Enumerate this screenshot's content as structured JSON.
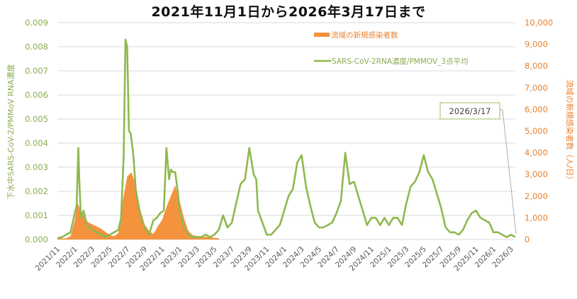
{
  "title": "2021年11月1日から2026年3月17日まで",
  "chart_data": {
    "type": "bar+line",
    "title": "2021年11月1日から2026年3月17日まで",
    "xlabel": "",
    "ylabel_left": "下水中SARS-CoV-2/PMMoV RNA濃度",
    "ylabel_right": "流域の新規感染者数（人/日）",
    "ylim_left": [
      0,
      0.009
    ],
    "ylim_right": [
      0,
      10000
    ],
    "yticks_left": [
      "0.000",
      "0.001",
      "0.002",
      "0.003",
      "0.004",
      "0.005",
      "0.006",
      "0.007",
      "0.008",
      "0.009"
    ],
    "yticks_right": [
      "0",
      "1,000",
      "2,000",
      "3,000",
      "4,000",
      "5,000",
      "6,000",
      "7,000",
      "8,000",
      "9,000",
      "10,000"
    ],
    "xticks": [
      "2021/11",
      "2022/1",
      "2022/3",
      "2022/5",
      "2022/7",
      "2022/9",
      "2022/11",
      "2023/1",
      "2023/3",
      "2023/5",
      "2023/7",
      "2023/9",
      "2023/11",
      "2024/1",
      "2024/3",
      "2024/5",
      "2024/7",
      "2024/9",
      "2024/11",
      "2025/1",
      "2025/3",
      "2025/5",
      "2025/7",
      "2025/9",
      "2025/11",
      "2026/1",
      "2026/3"
    ],
    "grid": true,
    "legend_position": "top-right inside",
    "series": [
      {
        "name": "流域の新規感染者数",
        "type": "area-bar",
        "axis": "right",
        "color": "#f5923e",
        "x_month_index": [
          0,
          1,
          1.5,
          2,
          2.3,
          2.6,
          3,
          3.5,
          4,
          4.5,
          5,
          5.5,
          6,
          6.5,
          7,
          7.5,
          8,
          8.5,
          9,
          9.5,
          10,
          10.5,
          11,
          11.5,
          12,
          12.5,
          13,
          13.5,
          14,
          14.5,
          15,
          15.5,
          16,
          16.5,
          17,
          17.5,
          18,
          18.5,
          18.6
        ],
        "values": [
          50,
          60,
          150,
          900,
          1700,
          1400,
          1100,
          800,
          700,
          600,
          500,
          350,
          200,
          150,
          300,
          1800,
          2900,
          3100,
          2500,
          1400,
          700,
          400,
          250,
          600,
          900,
          1500,
          2000,
          2500,
          1800,
          1000,
          400,
          200,
          150,
          100,
          120,
          100,
          80,
          60,
          0
        ]
      },
      {
        "name": "SARS-CoV-2RNA濃度/PMMOV_3点平均",
        "type": "line",
        "axis": "left",
        "color": "#8fb84f",
        "x_month_index": [
          0,
          0.5,
          1,
          1.5,
          2,
          2.2,
          2.4,
          2.5,
          2.7,
          3,
          3.3,
          3.6,
          4,
          4.5,
          5,
          5.5,
          6,
          6.5,
          7,
          7.3,
          7.6,
          7.8,
          8.0,
          8.2,
          8.4,
          8.7,
          9,
          9.5,
          10,
          10.5,
          11,
          11.4,
          11.8,
          12.2,
          12.5,
          12.8,
          13,
          13.2,
          13.5,
          13.8,
          14,
          14.5,
          15,
          15.5,
          16,
          16.5,
          17,
          17.5,
          18,
          18.5,
          19,
          19.5,
          20,
          20.5,
          21,
          21.5,
          22,
          22.5,
          22.8,
          23,
          23.5,
          24,
          24.5,
          25,
          25.5,
          26,
          26.5,
          27,
          27.5,
          28,
          28.5,
          29,
          29.5,
          30,
          30.5,
          31,
          31.5,
          32,
          32.5,
          33,
          33.5,
          34,
          34.5,
          35,
          35.5,
          36,
          36.5,
          37,
          37.5,
          38,
          38.5,
          39,
          39.5,
          40,
          40.5,
          41,
          41.5,
          42,
          42.5,
          43,
          43.5,
          44,
          44.5,
          45,
          45.5,
          46,
          46.5,
          47,
          47.5,
          48,
          48.5,
          49,
          49.5,
          50,
          50.5,
          51,
          51.5,
          52,
          52.5
        ],
        "values": [
          5e-05,
          0.0001,
          0.0002,
          0.0003,
          0.0011,
          0.0014,
          0.0038,
          0.0025,
          0.0009,
          0.0012,
          0.0007,
          0.0005,
          0.0004,
          0.0003,
          0.0002,
          0.0001,
          0.0002,
          0.0003,
          0.0004,
          0.0009,
          0.0035,
          0.0083,
          0.008,
          0.0045,
          0.0044,
          0.0035,
          0.002,
          0.001,
          0.0005,
          0.0002,
          0.0008,
          0.0009,
          0.0011,
          0.0012,
          0.0038,
          0.0025,
          0.0029,
          0.0028,
          0.0028,
          0.002,
          0.0012,
          0.0005,
          0.0002,
          0.0001,
          0.0001,
          0.0001,
          0.0002,
          0.0001,
          0.0002,
          0.0004,
          0.001,
          0.0005,
          0.0007,
          0.0015,
          0.0023,
          0.0025,
          0.0038,
          0.0027,
          0.0025,
          0.0012,
          0.0007,
          0.0002,
          0.0002,
          0.0004,
          0.0006,
          0.0012,
          0.0018,
          0.0021,
          0.0032,
          0.0035,
          0.0022,
          0.0014,
          0.0007,
          0.0005,
          0.0005,
          0.0006,
          0.0007,
          0.0011,
          0.0016,
          0.0036,
          0.0023,
          0.0024,
          0.0018,
          0.0012,
          0.0006,
          0.0009,
          0.0009,
          0.0006,
          0.0009,
          0.0006,
          0.0009,
          0.0009,
          0.0006,
          0.0015,
          0.0022,
          0.0024,
          0.0028,
          0.0035,
          0.0028,
          0.0025,
          0.0019,
          0.0013,
          0.0005,
          0.0003,
          0.0003,
          0.0002,
          0.0004,
          0.0008,
          0.0011,
          0.0012,
          0.0009,
          0.0008,
          0.0007,
          0.0003,
          0.0003,
          0.0002,
          0.0001,
          0.0002,
          0.0001,
          0.0004,
          0.0005,
          0.0008,
          0.0004,
          0.0002
        ]
      }
    ],
    "annotations": [
      {
        "text": "2026/3/17",
        "points_to": "last data point"
      }
    ]
  },
  "legend": {
    "bar_label": "流域の新規感染者数",
    "line_label": "SARS-CoV-2RNA濃度/PMMOV_3点平均"
  },
  "axes": {
    "left_label": "下水中SARS-CoV-2/PMMoV RNA濃度",
    "right_label": "流域の新規感染者数（人/日）"
  },
  "callout": {
    "text": "2026/3/17"
  },
  "colors": {
    "bar": "#f5923e",
    "line": "#8fb84f",
    "left_axis": "#8aab52",
    "right_axis": "#e8812f",
    "grid": "#d9d9d9"
  }
}
